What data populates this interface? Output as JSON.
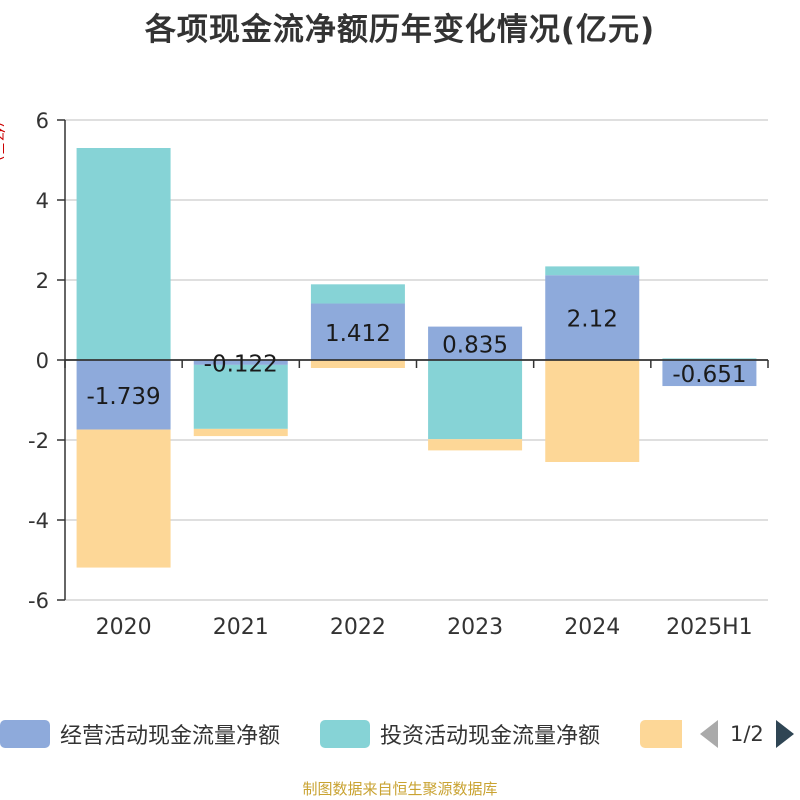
{
  "title": "各项现金流净额历年变化情况(亿元)",
  "unit_label": "(亿元)",
  "source": "制图数据来自恒生聚源数据库",
  "chart_data": {
    "type": "bar",
    "stacked": true,
    "categories": [
      "2020",
      "2021",
      "2022",
      "2023",
      "2024",
      "2025H1"
    ],
    "ylim": [
      -6,
      6
    ],
    "yticks": [
      -6,
      -4,
      -2,
      0,
      2,
      4,
      6
    ],
    "grid": true,
    "legend_position": "bottom",
    "series": [
      {
        "name": "经营活动现金流量净额",
        "color": "#8eaadb",
        "values": [
          -1.739,
          -0.122,
          1.412,
          0.835,
          2.12,
          -0.651
        ],
        "labels": [
          "-1.739",
          "-0.122",
          "1.412",
          "0.835",
          "2.12",
          "-0.651"
        ]
      },
      {
        "name": "投资活动现金流量净额",
        "color": "#86d3d6",
        "values": [
          5.3,
          -1.6,
          0.48,
          -1.98,
          0.22,
          0.04
        ]
      },
      {
        "name": "",
        "color": "#fdd797",
        "values": [
          -3.45,
          -0.18,
          -0.2,
          -0.28,
          -2.55,
          0.0
        ]
      }
    ]
  },
  "legend": {
    "items": [
      {
        "label": "经营活动现金流量净额",
        "color": "#8eaadb"
      },
      {
        "label": "投资活动现金流量净额",
        "color": "#86d3d6"
      },
      {
        "label": "",
        "color": "#fdd797"
      }
    ],
    "page": "1/2"
  }
}
